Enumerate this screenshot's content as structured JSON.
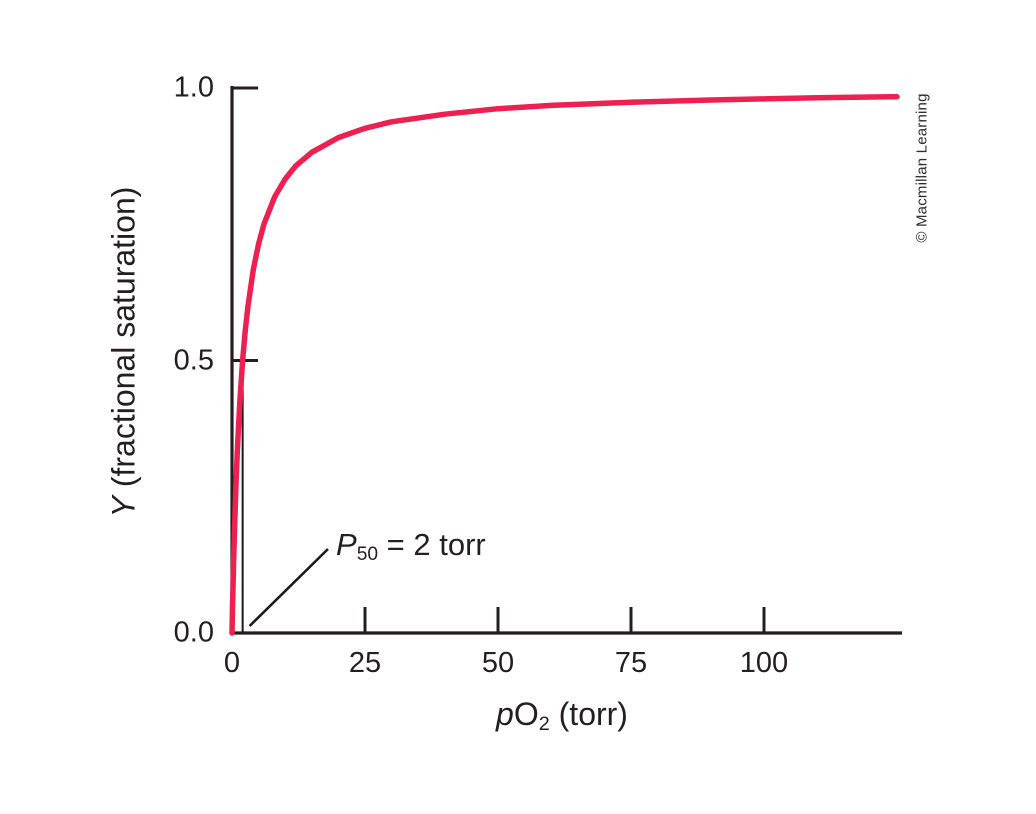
{
  "chart_data": {
    "type": "line",
    "title": "",
    "xlabel": "pO2 (torr)",
    "ylabel": "Y (fractional saturation)",
    "xlim": [
      0,
      126
    ],
    "ylim": [
      0,
      1.0
    ],
    "x_ticks": [
      0,
      25,
      50,
      75,
      100
    ],
    "x_tick_labels": [
      "0",
      "25",
      "50",
      "75",
      "100"
    ],
    "y_ticks": [
      0.0,
      0.5,
      1.0
    ],
    "y_tick_labels": [
      "0.0",
      "0.5",
      "1.0"
    ],
    "grid": false,
    "legend": false,
    "curve_color": "#ec2152",
    "axis_color": "#231f20",
    "p50_torr": 2,
    "p50_saturation": 0.5,
    "annotation_text": "P50 = 2 torr",
    "series": [
      {
        "name": "hyperbolic oxygen-binding curve (Y = pO2 / (P50 + pO2), P50 = 2 torr)",
        "x": [
          0,
          0.1,
          0.2,
          0.3,
          0.5,
          0.75,
          1,
          1.25,
          1.5,
          2,
          2.5,
          3,
          4,
          5,
          6,
          8,
          10,
          12,
          15,
          20,
          25,
          30,
          40,
          50,
          60,
          75,
          90,
          100,
          110,
          125
        ],
        "y": [
          0,
          0.048,
          0.091,
          0.13,
          0.2,
          0.273,
          0.333,
          0.385,
          0.429,
          0.5,
          0.556,
          0.6,
          0.667,
          0.714,
          0.75,
          0.8,
          0.833,
          0.857,
          0.882,
          0.909,
          0.926,
          0.938,
          0.952,
          0.962,
          0.968,
          0.974,
          0.978,
          0.98,
          0.982,
          0.984
        ]
      }
    ]
  },
  "labels": {
    "y_axis": {
      "italic_part": "Y",
      "rest": " (fractional saturation)"
    },
    "x_axis": {
      "italic_part": "p",
      "element": "O",
      "subscript": "2",
      "rest": " (torr)"
    },
    "annotation": {
      "italic_part": "P",
      "subscript": "50",
      "rest": " = 2 torr"
    },
    "credit": "© Macmillan Learning"
  }
}
